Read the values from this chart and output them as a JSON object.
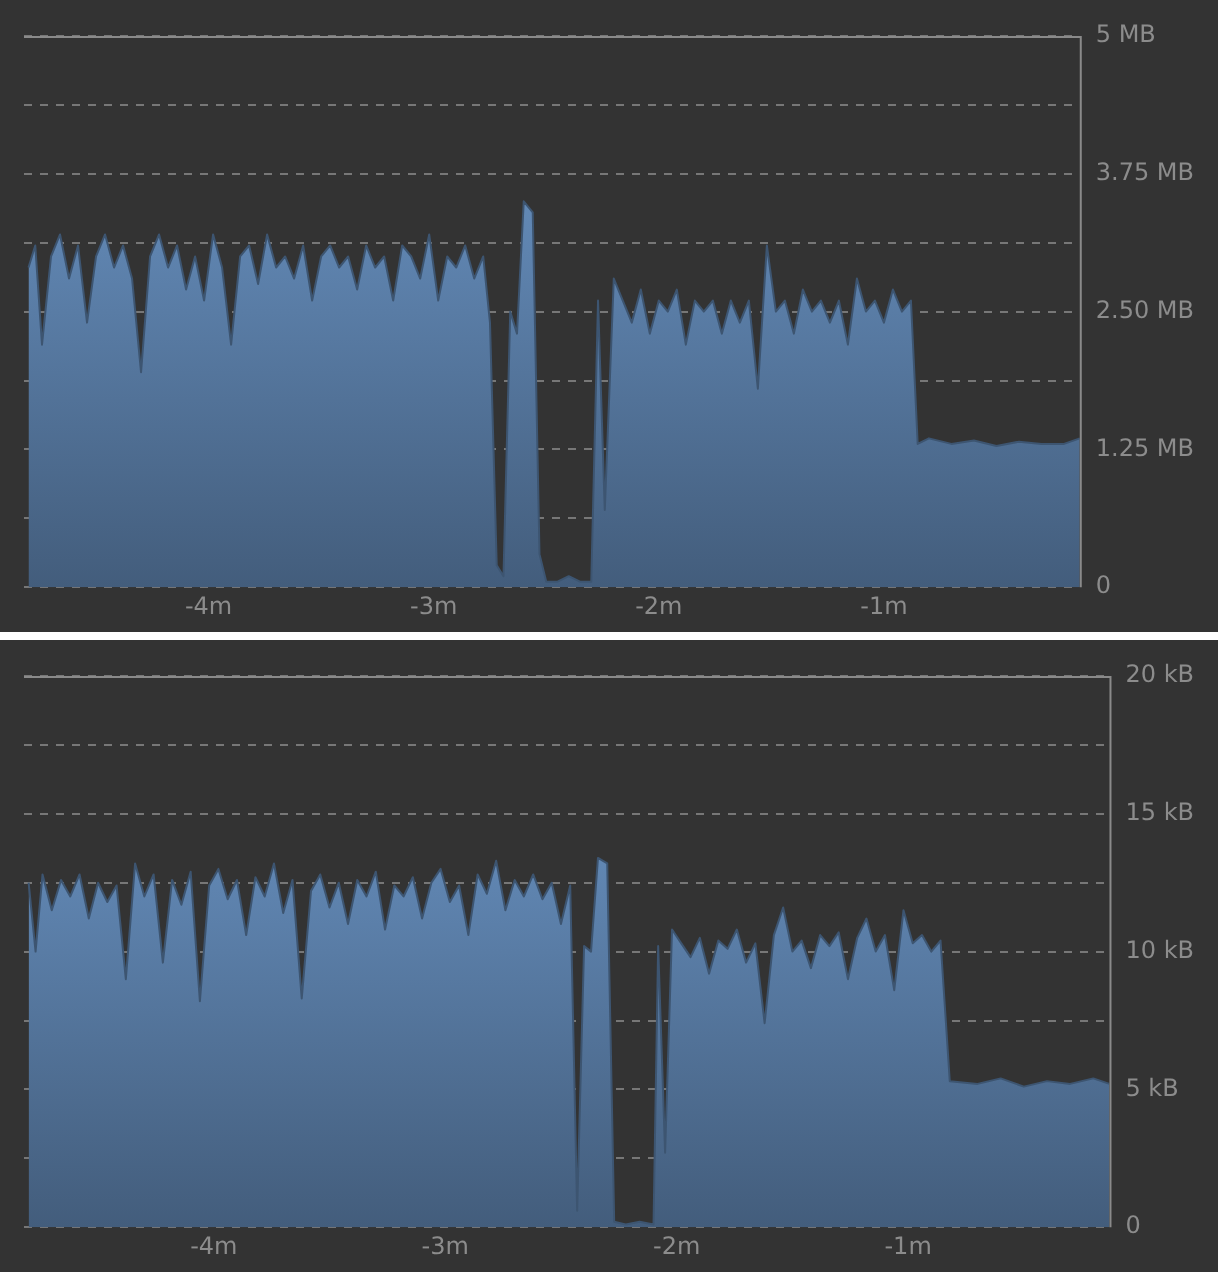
{
  "chart_data": [
    {
      "type": "area",
      "xlim": [
        -4.82,
        -0.13
      ],
      "xticks": [
        {
          "value": -4,
          "label": "-4m"
        },
        {
          "value": -3,
          "label": "-3m"
        },
        {
          "value": -2,
          "label": "-2m"
        },
        {
          "value": -1,
          "label": "-1m"
        }
      ],
      "ylim": [
        0,
        5
      ],
      "yticks": [
        {
          "value": 0,
          "label": "0"
        },
        {
          "value": 0.625,
          "label": null
        },
        {
          "value": 1.25,
          "label": "1.25 MB"
        },
        {
          "value": 1.875,
          "label": null
        },
        {
          "value": 2.5,
          "label": "2.50 MB"
        },
        {
          "value": 3.125,
          "label": null
        },
        {
          "value": 3.75,
          "label": "3.75 MB"
        },
        {
          "value": 4.375,
          "label": null
        },
        {
          "value": 5,
          "label": "5 MB"
        }
      ],
      "grid": "y",
      "x": [
        -4.8,
        -4.77,
        -4.74,
        -4.7,
        -4.66,
        -4.62,
        -4.58,
        -4.54,
        -4.5,
        -4.46,
        -4.42,
        -4.38,
        -4.34,
        -4.3,
        -4.26,
        -4.22,
        -4.18,
        -4.14,
        -4.1,
        -4.06,
        -4.02,
        -3.98,
        -3.94,
        -3.9,
        -3.86,
        -3.82,
        -3.78,
        -3.74,
        -3.7,
        -3.66,
        -3.62,
        -3.58,
        -3.54,
        -3.5,
        -3.46,
        -3.42,
        -3.38,
        -3.34,
        -3.3,
        -3.26,
        -3.22,
        -3.18,
        -3.14,
        -3.1,
        -3.06,
        -3.02,
        -2.98,
        -2.94,
        -2.9,
        -2.86,
        -2.82,
        -2.78,
        -2.75,
        -2.72,
        -2.69,
        -2.66,
        -2.63,
        -2.6,
        -2.56,
        -2.53,
        -2.5,
        -2.45,
        -2.4,
        -2.35,
        -2.3,
        -2.27,
        -2.24,
        -2.2,
        -2.16,
        -2.12,
        -2.08,
        -2.04,
        -2.0,
        -1.96,
        -1.92,
        -1.88,
        -1.84,
        -1.8,
        -1.76,
        -1.72,
        -1.68,
        -1.64,
        -1.6,
        -1.56,
        -1.52,
        -1.48,
        -1.44,
        -1.4,
        -1.36,
        -1.32,
        -1.28,
        -1.24,
        -1.2,
        -1.16,
        -1.12,
        -1.08,
        -1.04,
        -1.0,
        -0.96,
        -0.92,
        -0.88,
        -0.85,
        -0.8,
        -0.7,
        -0.6,
        -0.5,
        -0.4,
        -0.3,
        -0.2,
        -0.13
      ],
      "series": [
        {
          "color": "#6f9bce",
          "values": [
            2.9,
            3.1,
            2.2,
            3.0,
            3.2,
            2.8,
            3.1,
            2.4,
            3.0,
            3.2,
            2.9,
            3.1,
            2.8,
            1.95,
            3.0,
            3.2,
            2.9,
            3.1,
            2.7,
            3.0,
            2.6,
            3.2,
            2.9,
            2.2,
            3.0,
            3.1,
            2.75,
            3.2,
            2.9,
            3.0,
            2.8,
            3.1,
            2.6,
            3.0,
            3.1,
            2.9,
            3.0,
            2.7,
            3.1,
            2.9,
            3.0,
            2.6,
            3.1,
            3.0,
            2.8,
            3.2,
            2.6,
            3.0,
            2.9,
            3.1,
            2.8,
            3.0,
            2.4,
            0.2,
            0.1,
            2.5,
            2.3,
            3.5,
            3.4,
            0.3,
            0.05,
            0.05,
            0.1,
            0.05,
            0.05,
            2.6,
            0.7,
            2.8,
            2.6,
            2.4,
            2.7,
            2.3,
            2.6,
            2.5,
            2.7,
            2.2,
            2.6,
            2.5,
            2.6,
            2.3,
            2.6,
            2.4,
            2.6,
            1.8,
            3.1,
            2.5,
            2.6,
            2.3,
            2.7,
            2.5,
            2.6,
            2.4,
            2.6,
            2.2,
            2.8,
            2.5,
            2.6,
            2.4,
            2.7,
            2.5,
            2.6,
            1.3,
            1.35,
            1.3,
            1.33,
            1.28,
            1.32,
            1.3,
            1.3,
            1.35
          ]
        }
      ]
    },
    {
      "type": "area",
      "xlim": [
        -4.82,
        -0.13
      ],
      "xticks": [
        {
          "value": -4,
          "label": "-4m"
        },
        {
          "value": -3,
          "label": "-3m"
        },
        {
          "value": -2,
          "label": "-2m"
        },
        {
          "value": -1,
          "label": "-1m"
        }
      ],
      "ylim": [
        0,
        20
      ],
      "yticks": [
        {
          "value": 0,
          "label": "0"
        },
        {
          "value": 2.5,
          "label": null
        },
        {
          "value": 5,
          "label": "5 kB"
        },
        {
          "value": 7.5,
          "label": null
        },
        {
          "value": 10,
          "label": "10 kB"
        },
        {
          "value": 12.5,
          "label": null
        },
        {
          "value": 15,
          "label": "15 kB"
        },
        {
          "value": 17.5,
          "label": null
        },
        {
          "value": 20,
          "label": "20 kB"
        }
      ],
      "grid": "y",
      "x": [
        -4.8,
        -4.77,
        -4.74,
        -4.7,
        -4.66,
        -4.62,
        -4.58,
        -4.54,
        -4.5,
        -4.46,
        -4.42,
        -4.38,
        -4.34,
        -4.3,
        -4.26,
        -4.22,
        -4.18,
        -4.14,
        -4.1,
        -4.06,
        -4.02,
        -3.98,
        -3.94,
        -3.9,
        -3.86,
        -3.82,
        -3.78,
        -3.74,
        -3.7,
        -3.66,
        -3.62,
        -3.58,
        -3.54,
        -3.5,
        -3.46,
        -3.42,
        -3.38,
        -3.34,
        -3.3,
        -3.26,
        -3.22,
        -3.18,
        -3.14,
        -3.1,
        -3.06,
        -3.02,
        -2.98,
        -2.94,
        -2.9,
        -2.86,
        -2.82,
        -2.78,
        -2.74,
        -2.7,
        -2.66,
        -2.62,
        -2.58,
        -2.54,
        -2.5,
        -2.46,
        -2.43,
        -2.4,
        -2.37,
        -2.34,
        -2.3,
        -2.27,
        -2.22,
        -2.16,
        -2.1,
        -2.08,
        -2.05,
        -2.02,
        -1.98,
        -1.94,
        -1.9,
        -1.86,
        -1.82,
        -1.78,
        -1.74,
        -1.7,
        -1.66,
        -1.62,
        -1.58,
        -1.54,
        -1.5,
        -1.46,
        -1.42,
        -1.38,
        -1.34,
        -1.3,
        -1.26,
        -1.22,
        -1.18,
        -1.14,
        -1.1,
        -1.06,
        -1.02,
        -0.98,
        -0.94,
        -0.9,
        -0.86,
        -0.82,
        -0.7,
        -0.6,
        -0.5,
        -0.4,
        -0.3,
        -0.2,
        -0.13
      ],
      "series": [
        {
          "color": "#6f9bce",
          "values": [
            12.5,
            10,
            12.8,
            11.5,
            12.6,
            12.0,
            12.8,
            11.2,
            12.5,
            11.8,
            12.4,
            9.0,
            13.2,
            12.0,
            12.8,
            9.6,
            12.6,
            11.7,
            12.9,
            8.2,
            12.4,
            13.0,
            11.9,
            12.6,
            10.6,
            12.7,
            12.0,
            13.2,
            11.4,
            12.6,
            8.3,
            12.2,
            12.8,
            11.6,
            12.5,
            11.0,
            12.6,
            12.0,
            12.9,
            10.8,
            12.4,
            12.0,
            12.7,
            11.2,
            12.5,
            13.0,
            11.8,
            12.4,
            10.6,
            12.8,
            12.1,
            13.3,
            11.5,
            12.6,
            12.0,
            12.8,
            11.9,
            12.5,
            11.0,
            12.4,
            0.6,
            10.2,
            10.0,
            13.4,
            13.2,
            0.2,
            0.1,
            0.2,
            0.1,
            10.2,
            2.7,
            10.8,
            10.3,
            9.8,
            10.5,
            9.2,
            10.4,
            10.1,
            10.8,
            9.6,
            10.3,
            7.4,
            10.6,
            11.6,
            10.0,
            10.4,
            9.4,
            10.6,
            10.2,
            10.7,
            9.0,
            10.5,
            11.2,
            10.0,
            10.6,
            8.6,
            11.5,
            10.3,
            10.6,
            10.0,
            10.4,
            5.3,
            5.2,
            5.4,
            5.1,
            5.3,
            5.2,
            5.4,
            5.2
          ]
        }
      ]
    }
  ]
}
